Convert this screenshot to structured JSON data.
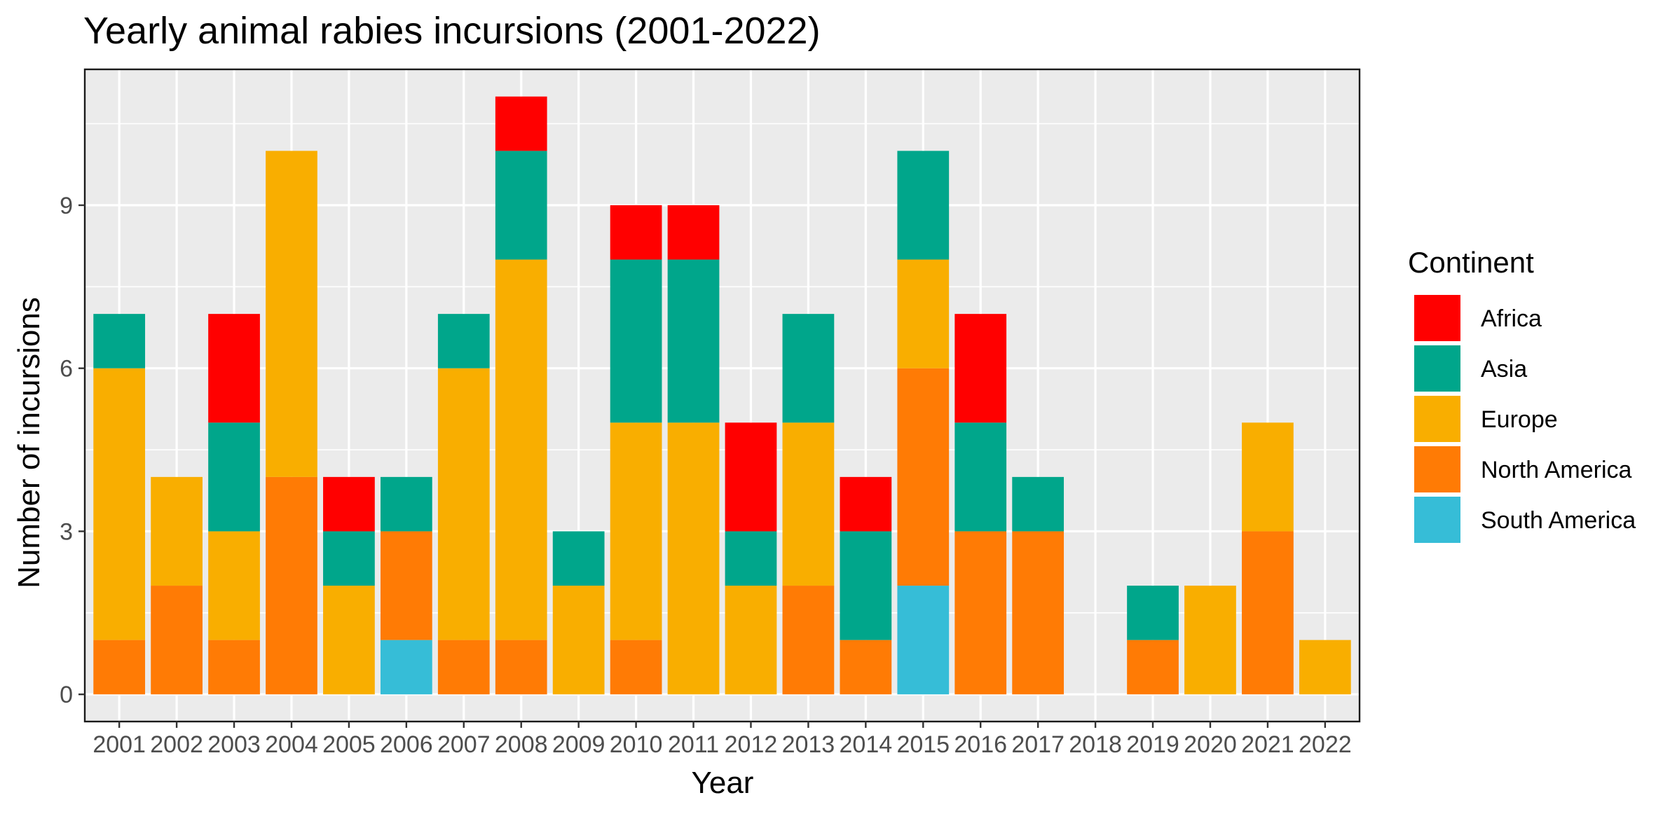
{
  "chart_data": {
    "type": "bar",
    "stacked": true,
    "title": "Yearly animal rabies incursions (2001-2022)",
    "xlabel": "Year",
    "ylabel": "Number of incursions",
    "categories": [
      "2001",
      "2002",
      "2003",
      "2004",
      "2005",
      "2006",
      "2007",
      "2008",
      "2009",
      "2010",
      "2011",
      "2012",
      "2013",
      "2014",
      "2015",
      "2016",
      "2017",
      "2018",
      "2019",
      "2020",
      "2021",
      "2022"
    ],
    "yticks": [
      0,
      3,
      6,
      9
    ],
    "ylim": [
      -0.5,
      11.5
    ],
    "grid": true,
    "legend": {
      "title": "Continent",
      "position": "right"
    },
    "series": [
      {
        "name": "South America",
        "color": "#36BDD7",
        "values": [
          0,
          0,
          0,
          0,
          0,
          1,
          0,
          0,
          0,
          0,
          0,
          0,
          0,
          0,
          2,
          0,
          0,
          0,
          0,
          0,
          0,
          0
        ]
      },
      {
        "name": "North America",
        "color": "#FF7B05",
        "values": [
          1,
          2,
          1,
          4,
          0,
          2,
          1,
          1,
          0,
          1,
          0,
          0,
          2,
          1,
          4,
          3,
          3,
          0,
          1,
          0,
          3,
          0
        ]
      },
      {
        "name": "Europe",
        "color": "#F9AE00",
        "values": [
          5,
          2,
          2,
          6,
          2,
          0,
          5,
          7,
          2,
          4,
          5,
          2,
          3,
          0,
          2,
          0,
          0,
          0,
          0,
          2,
          2,
          1
        ]
      },
      {
        "name": "Asia",
        "color": "#00A68B",
        "values": [
          1,
          0,
          2,
          0,
          1,
          1,
          1,
          2,
          1,
          3,
          3,
          1,
          2,
          2,
          2,
          2,
          1,
          0,
          1,
          0,
          0,
          0
        ]
      },
      {
        "name": "Africa",
        "color": "#FF0000",
        "values": [
          0,
          0,
          2,
          0,
          1,
          0,
          0,
          1,
          0,
          1,
          1,
          2,
          0,
          1,
          0,
          2,
          0,
          0,
          0,
          0,
          0,
          0
        ]
      }
    ],
    "legend_order": [
      "Africa",
      "Asia",
      "Europe",
      "North America",
      "South America"
    ]
  }
}
